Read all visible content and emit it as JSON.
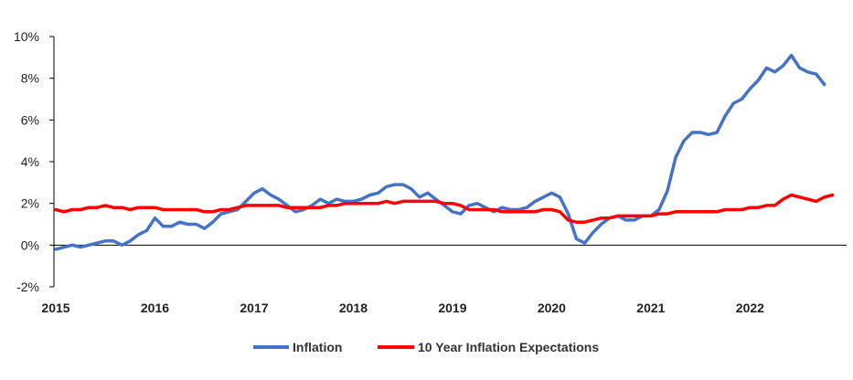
{
  "chart_data": {
    "type": "line",
    "title": "",
    "xlabel": "",
    "ylabel": "",
    "xlim": [
      2015.0,
      2022.9
    ],
    "ylim": [
      -2,
      10
    ],
    "yticks": [
      -2,
      0,
      2,
      4,
      6,
      8,
      10
    ],
    "ytick_labels": [
      "-2%",
      "0%",
      "2%",
      "4%",
      "6%",
      "8%",
      "10%"
    ],
    "xticks": [
      2015,
      2016,
      2017,
      2018,
      2019,
      2020,
      2021,
      2022
    ],
    "xtick_labels": [
      "2015",
      "2016",
      "2017",
      "2018",
      "2019",
      "2020",
      "2021",
      "2022"
    ],
    "grid": false,
    "legend_position": "bottom",
    "series": [
      {
        "name": "Inflation",
        "color": "#4472C4",
        "x": [
          2015.0,
          2015.083,
          2015.167,
          2015.25,
          2015.333,
          2015.417,
          2015.5,
          2015.583,
          2015.667,
          2015.75,
          2015.833,
          2015.917,
          2016.0,
          2016.083,
          2016.167,
          2016.25,
          2016.333,
          2016.417,
          2016.5,
          2016.583,
          2016.667,
          2016.75,
          2016.833,
          2016.917,
          2017.0,
          2017.083,
          2017.167,
          2017.25,
          2017.333,
          2017.417,
          2017.5,
          2017.583,
          2017.667,
          2017.75,
          2017.833,
          2017.917,
          2018.0,
          2018.083,
          2018.167,
          2018.25,
          2018.333,
          2018.417,
          2018.5,
          2018.583,
          2018.667,
          2018.75,
          2018.833,
          2018.917,
          2019.0,
          2019.083,
          2019.167,
          2019.25,
          2019.333,
          2019.417,
          2019.5,
          2019.583,
          2019.667,
          2019.75,
          2019.833,
          2019.917,
          2020.0,
          2020.083,
          2020.167,
          2020.25,
          2020.333,
          2020.417,
          2020.5,
          2020.583,
          2020.667,
          2020.75,
          2020.833,
          2020.917,
          2021.0,
          2021.083,
          2021.167,
          2021.25,
          2021.333,
          2021.417,
          2021.5,
          2021.583,
          2021.667,
          2021.75,
          2021.833,
          2021.917,
          2022.0,
          2022.083,
          2022.167,
          2022.25,
          2022.333,
          2022.417,
          2022.5,
          2022.583,
          2022.667,
          2022.75
        ],
        "values": [
          -0.2,
          -0.1,
          0.0,
          -0.1,
          0.0,
          0.1,
          0.2,
          0.2,
          0.0,
          0.2,
          0.5,
          0.7,
          1.3,
          0.9,
          0.9,
          1.1,
          1.0,
          1.0,
          0.8,
          1.1,
          1.5,
          1.6,
          1.7,
          2.1,
          2.5,
          2.7,
          2.4,
          2.2,
          1.9,
          1.6,
          1.7,
          1.9,
          2.2,
          2.0,
          2.2,
          2.1,
          2.1,
          2.2,
          2.4,
          2.5,
          2.8,
          2.9,
          2.9,
          2.7,
          2.3,
          2.5,
          2.2,
          1.9,
          1.6,
          1.5,
          1.9,
          2.0,
          1.8,
          1.6,
          1.8,
          1.7,
          1.7,
          1.8,
          2.1,
          2.3,
          2.5,
          2.3,
          1.5,
          0.3,
          0.1,
          0.6,
          1.0,
          1.3,
          1.4,
          1.2,
          1.2,
          1.4,
          1.4,
          1.7,
          2.6,
          4.2,
          5.0,
          5.4,
          5.4,
          5.3,
          5.4,
          6.2,
          6.8,
          7.0,
          7.5,
          7.9,
          8.5,
          8.3,
          8.6,
          9.1,
          8.5,
          8.3,
          8.2,
          7.7
        ]
      },
      {
        "name": "10 Year Inflation Expectations",
        "color": "#FF0000",
        "x": [
          2015.0,
          2015.083,
          2015.167,
          2015.25,
          2015.333,
          2015.417,
          2015.5,
          2015.583,
          2015.667,
          2015.75,
          2015.833,
          2015.917,
          2016.0,
          2016.083,
          2016.167,
          2016.25,
          2016.333,
          2016.417,
          2016.5,
          2016.583,
          2016.667,
          2016.75,
          2016.833,
          2016.917,
          2017.0,
          2017.083,
          2017.167,
          2017.25,
          2017.333,
          2017.417,
          2017.5,
          2017.583,
          2017.667,
          2017.75,
          2017.833,
          2017.917,
          2018.0,
          2018.083,
          2018.167,
          2018.25,
          2018.333,
          2018.417,
          2018.5,
          2018.583,
          2018.667,
          2018.75,
          2018.833,
          2018.917,
          2019.0,
          2019.083,
          2019.167,
          2019.25,
          2019.333,
          2019.417,
          2019.5,
          2019.583,
          2019.667,
          2019.75,
          2019.833,
          2019.917,
          2020.0,
          2020.083,
          2020.167,
          2020.25,
          2020.333,
          2020.417,
          2020.5,
          2020.583,
          2020.667,
          2020.75,
          2020.833,
          2020.917,
          2021.0,
          2021.083,
          2021.167,
          2021.25,
          2021.333,
          2021.417,
          2021.5,
          2021.583,
          2021.667,
          2021.75,
          2021.833,
          2021.917,
          2022.0,
          2022.083,
          2022.167,
          2022.25,
          2022.333,
          2022.417,
          2022.5,
          2022.583,
          2022.667,
          2022.75,
          2022.833
        ],
        "values": [
          1.7,
          1.6,
          1.7,
          1.7,
          1.8,
          1.8,
          1.9,
          1.8,
          1.8,
          1.7,
          1.8,
          1.8,
          1.8,
          1.7,
          1.7,
          1.7,
          1.7,
          1.7,
          1.6,
          1.6,
          1.7,
          1.7,
          1.8,
          1.9,
          1.9,
          1.9,
          1.9,
          1.9,
          1.8,
          1.8,
          1.8,
          1.8,
          1.8,
          1.9,
          1.9,
          2.0,
          2.0,
          2.0,
          2.0,
          2.0,
          2.1,
          2.0,
          2.1,
          2.1,
          2.1,
          2.1,
          2.1,
          2.0,
          2.0,
          1.9,
          1.7,
          1.7,
          1.7,
          1.7,
          1.6,
          1.6,
          1.6,
          1.6,
          1.6,
          1.7,
          1.7,
          1.6,
          1.2,
          1.1,
          1.1,
          1.2,
          1.3,
          1.3,
          1.4,
          1.4,
          1.4,
          1.4,
          1.4,
          1.5,
          1.5,
          1.6,
          1.6,
          1.6,
          1.6,
          1.6,
          1.6,
          1.7,
          1.7,
          1.7,
          1.8,
          1.8,
          1.9,
          1.9,
          2.2,
          2.4,
          2.3,
          2.2,
          2.1,
          2.3,
          2.4
        ]
      }
    ]
  }
}
